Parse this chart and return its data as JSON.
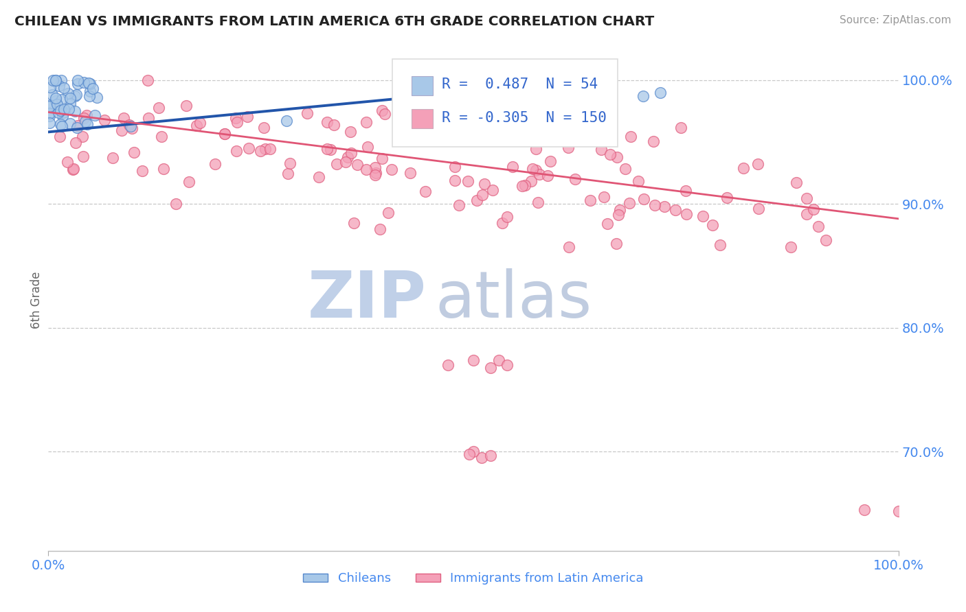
{
  "title": "CHILEAN VS IMMIGRANTS FROM LATIN AMERICA 6TH GRADE CORRELATION CHART",
  "source": "Source: ZipAtlas.com",
  "ylabel": "6th Grade",
  "r_blue": 0.487,
  "n_blue": 54,
  "r_pink": -0.305,
  "n_pink": 150,
  "blue_color": "#a8c8e8",
  "blue_edge_color": "#5588cc",
  "blue_line_color": "#2255aa",
  "pink_color": "#f4a0b8",
  "pink_edge_color": "#e06080",
  "pink_line_color": "#e05575",
  "title_color": "#222222",
  "axis_label_color": "#4488ee",
  "legend_r_color": "#3366cc",
  "watermark_zip_color": "#c0d0e8",
  "watermark_atlas_color": "#c0cce0",
  "background_color": "#ffffff",
  "grid_color": "#bbbbbb",
  "xmin": 0.0,
  "xmax": 1.0,
  "ymin": 0.62,
  "ymax": 1.025,
  "ytick_positions": [
    0.7,
    0.8,
    0.9,
    1.0
  ],
  "ytick_labels": [
    "70.0%",
    "80.0%",
    "90.0%",
    "100.0%"
  ],
  "xtick_positions": [
    0.0,
    1.0
  ],
  "xtick_labels": [
    "0.0%",
    "100.0%"
  ],
  "blue_trend_x": [
    0.0,
    0.52
  ],
  "blue_trend_y": [
    0.958,
    0.992
  ],
  "pink_trend_x": [
    0.0,
    1.0
  ],
  "pink_trend_y": [
    0.974,
    0.888
  ]
}
